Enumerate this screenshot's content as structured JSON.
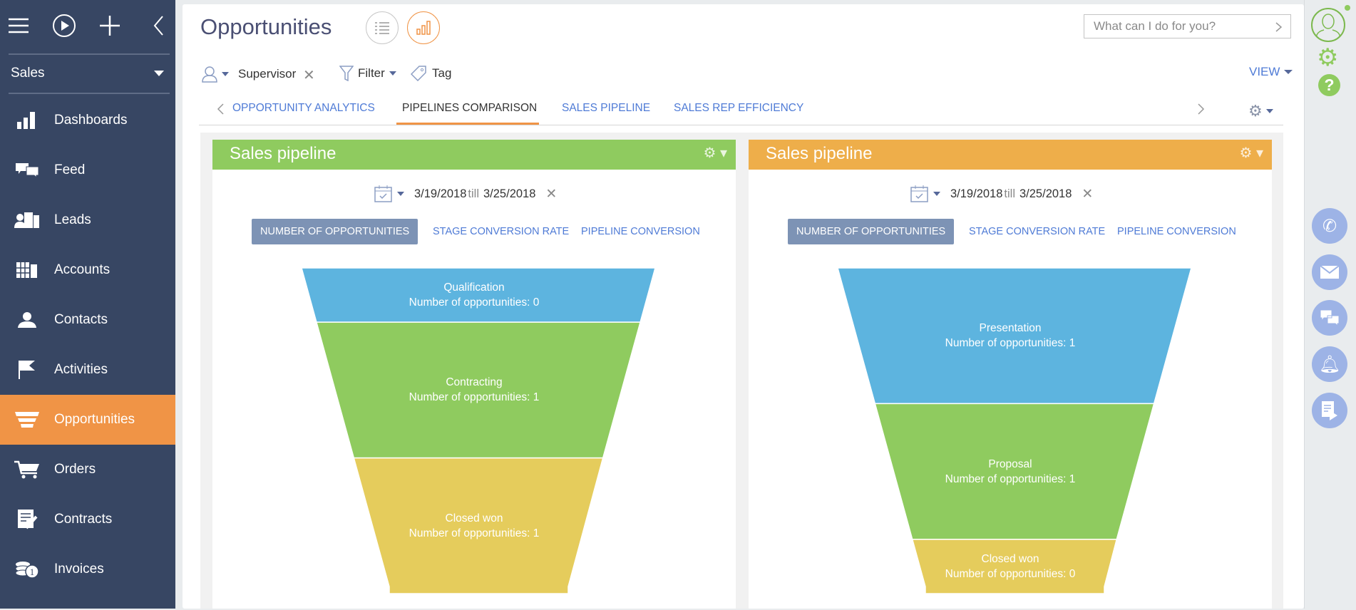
{
  "sidebar": {
    "workplace": "Sales",
    "items": [
      {
        "label": "Dashboards",
        "icon": "bar-chart-icon"
      },
      {
        "label": "Feed",
        "icon": "chat-icon"
      },
      {
        "label": "Leads",
        "icon": "leads-icon"
      },
      {
        "label": "Accounts",
        "icon": "building-icon"
      },
      {
        "label": "Contacts",
        "icon": "person-icon"
      },
      {
        "label": "Activities",
        "icon": "flag-icon"
      },
      {
        "label": "Opportunities",
        "icon": "funnel-icon",
        "active": true
      },
      {
        "label": "Orders",
        "icon": "cart-icon"
      },
      {
        "label": "Contracts",
        "icon": "contract-icon"
      },
      {
        "label": "Invoices",
        "icon": "coins-icon"
      }
    ]
  },
  "header": {
    "title": "Opportunities",
    "search_placeholder": "What can I do for you?"
  },
  "filters": {
    "owner": "Supervisor",
    "filter": "Filter",
    "tag": "Tag",
    "view": "VIEW"
  },
  "tabs": [
    "OPPORTUNITY ANALYTICS",
    "PIPELINES COMPARISON",
    "SALES PIPELINE",
    "SALES REP EFFICIENCY"
  ],
  "active_tab": "PIPELINES COMPARISON",
  "colors": {
    "sidebar": "#374663",
    "accent": "#f09446",
    "green": "#8fcb5f",
    "orange": "#eeae4a",
    "blue": "#5db4df",
    "yellow": "#e5cc5c"
  },
  "panels": [
    {
      "title": "Sales pipeline",
      "date_from": "3/19/2018",
      "till": "till",
      "date_to": "3/25/2018",
      "modes": [
        "NUMBER OF OPPORTUNITIES",
        "STAGE CONVERSION RATE",
        "PIPELINE CONVERSION"
      ]
    },
    {
      "title": "Sales pipeline",
      "date_from": "3/19/2018",
      "till": "till",
      "date_to": "3/25/2018",
      "modes": [
        "NUMBER OF OPPORTUNITIES",
        "STAGE CONVERSION RATE",
        "PIPELINE CONVERSION"
      ]
    }
  ],
  "chart_data": [
    {
      "type": "funnel",
      "title": "Sales pipeline",
      "metric": "Number of opportunities",
      "stages": [
        {
          "name": "Qualification",
          "value": 0,
          "color": "#5db4df"
        },
        {
          "name": "Contracting",
          "value": 1,
          "color": "#8fcb5f"
        },
        {
          "name": "Closed won",
          "value": 1,
          "color": "#e5cc5c"
        }
      ]
    },
    {
      "type": "funnel",
      "title": "Sales pipeline",
      "metric": "Number of opportunities",
      "stages": [
        {
          "name": "Presentation",
          "value": 1,
          "color": "#5db4df"
        },
        {
          "name": "Proposal",
          "value": 1,
          "color": "#8fcb5f"
        },
        {
          "name": "Closed won",
          "value": 0,
          "color": "#e5cc5c"
        }
      ]
    }
  ]
}
